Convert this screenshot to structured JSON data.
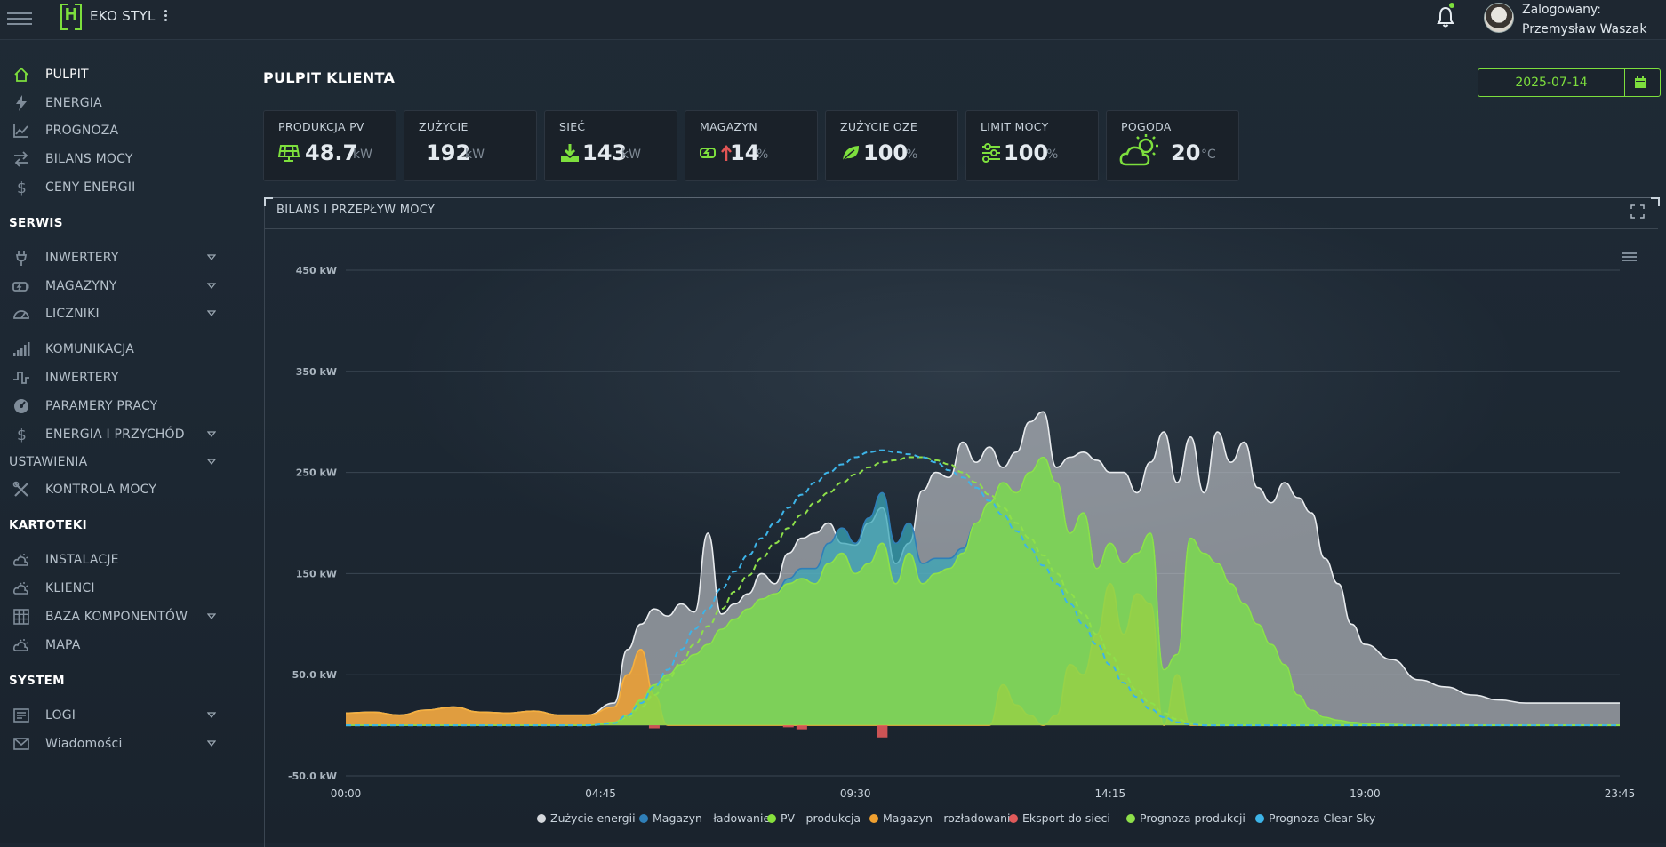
{
  "header": {
    "logo_letter": "H",
    "brand": "EKO STYL",
    "user_line1": "Zalogowany:",
    "user_line2": "Przemysław Waszak",
    "icons": [
      "menu-icon",
      "kebab-icon",
      "bell-icon",
      "avatar"
    ]
  },
  "sidebar": {
    "main_items": [
      {
        "label": "PULPIT",
        "icon": "home-icon",
        "active": true
      },
      {
        "label": "ENERGIA",
        "icon": "bolt-icon"
      },
      {
        "label": "PROGNOZA",
        "icon": "trend-icon"
      },
      {
        "label": "BILANS MOCY",
        "icon": "swap-icon"
      },
      {
        "label": "CENY ENERGII",
        "icon": "dollar-icon"
      }
    ],
    "sections": {
      "serwis": "SERWIS",
      "ustawienia": "USTAWIENIA",
      "kartoteki": "KARTOTEKI",
      "system": "SYSTEM"
    },
    "serwis_items": [
      {
        "label": "INWERTERY",
        "icon": "plug-icon",
        "dropdown": true
      },
      {
        "label": "MAGAZYNY",
        "icon": "battery-icon",
        "dropdown": true
      },
      {
        "label": "LICZNIKI",
        "icon": "gauge-icon",
        "dropdown": true
      },
      {
        "label": "KOMUNIKACJA",
        "icon": "signal-icon"
      },
      {
        "label": "INWERTERY",
        "icon": "wave-icon"
      },
      {
        "label": "PARAMERY PRACY",
        "icon": "dial-icon"
      },
      {
        "label": "ENERGIA I PRZYCHÓD",
        "icon": "dollar-icon",
        "dropdown": true
      }
    ],
    "ustawienia_items": [
      {
        "label": "KONTROLA MOCY",
        "icon": "tools-icon"
      }
    ],
    "kartoteki_items": [
      {
        "label": "INSTALACJE",
        "icon": "weather-icon"
      },
      {
        "label": "KLIENCI",
        "icon": "weather-icon"
      },
      {
        "label": "BAZA KOMPONENTÓW",
        "icon": "grid-icon",
        "dropdown": true
      },
      {
        "label": "MAPA",
        "icon": "weather-icon"
      }
    ],
    "system_items": [
      {
        "label": "LOGI",
        "icon": "log-icon",
        "dropdown": true
      },
      {
        "label": "Wiadomości",
        "icon": "mail-icon",
        "dropdown": true
      }
    ]
  },
  "main": {
    "title": "PULPIT KLIENTA",
    "date": "2025-07-14",
    "cards": [
      {
        "title": "PRODUKCJA PV",
        "value": "48.7",
        "unit": "kW",
        "icon": "solar-panel-icon"
      },
      {
        "title": "ZUŻYCIE",
        "value": "192",
        "unit": "kW",
        "icon": ""
      },
      {
        "title": "SIEĆ",
        "value": "143",
        "unit": "kW",
        "icon": "download-icon"
      },
      {
        "title": "MAGAZYN",
        "value": "14",
        "unit": "%",
        "icon": "battery-charge-icon"
      },
      {
        "title": "ZUŻYCIE OZE",
        "value": "100",
        "unit": "%",
        "icon": "leaf-icon"
      },
      {
        "title": "LIMIT MOCY",
        "value": "100",
        "unit": "%",
        "icon": "sliders-icon"
      },
      {
        "title": "POGODA",
        "value": "20",
        "unit": "°C",
        "icon": "partly-sunny-icon"
      }
    ],
    "panel_title": "BILANS I PRZEPŁYW MOCY"
  },
  "colors": {
    "accent": "#7ddf3d",
    "consumption": "#d5d8dc",
    "storage_charge": "#2f7fb8",
    "pv": "#86e03c",
    "storage_discharge": "#f0a030",
    "export": "#e05a5a",
    "forecast": "#8ee04a",
    "clear_sky": "#3db4e8"
  },
  "chart_data": {
    "type": "area",
    "y_ticks": [
      "450 kW",
      "350 kW",
      "250 kW",
      "150 kW",
      "50.0 kW",
      "-50.0 kW"
    ],
    "x_ticks": [
      "00:00",
      "04:45",
      "09:30",
      "14:15",
      "19:00",
      "23:45"
    ],
    "ylim": [
      -50,
      450
    ],
    "x_hours": [
      0,
      0.5,
      1,
      1.5,
      2,
      2.5,
      3,
      3.5,
      4,
      4.5,
      5,
      5.25,
      5.5,
      5.75,
      6,
      6.25,
      6.5,
      6.75,
      7,
      7.25,
      7.5,
      7.75,
      8,
      8.25,
      8.5,
      8.75,
      9,
      9.25,
      9.5,
      9.75,
      10,
      10.25,
      10.5,
      10.75,
      11,
      11.25,
      11.5,
      11.75,
      12,
      12.25,
      12.5,
      12.75,
      13,
      13.25,
      13.5,
      13.75,
      14,
      14.25,
      14.5,
      14.75,
      15,
      15.25,
      15.5,
      15.75,
      16,
      16.25,
      16.5,
      16.75,
      17,
      17.25,
      17.5,
      17.75,
      18,
      18.25,
      18.5,
      18.75,
      19,
      19.5,
      20,
      20.5,
      21,
      21.5,
      22,
      22.5,
      23,
      23.5,
      23.75
    ],
    "series": [
      {
        "name": "Zużycie energii",
        "color": "#d5d8dc",
        "values": [
          12,
          13,
          10,
          15,
          18,
          13,
          12,
          14,
          10,
          10,
          22,
          75,
          100,
          115,
          108,
          120,
          112,
          190,
          110,
          120,
          130,
          150,
          140,
          170,
          185,
          190,
          200,
          180,
          178,
          200,
          215,
          160,
          180,
          232,
          250,
          245,
          280,
          260,
          275,
          255,
          270,
          300,
          310,
          255,
          265,
          270,
          262,
          250,
          250,
          230,
          260,
          290,
          240,
          285,
          230,
          290,
          260,
          280,
          235,
          220,
          240,
          225,
          210,
          165,
          140,
          100,
          80,
          65,
          45,
          38,
          30,
          25,
          22,
          22,
          22,
          22,
          22
        ]
      },
      {
        "name": "Magazyn - ładowanie",
        "color": "#2f7fb8",
        "values": [
          0,
          0,
          0,
          0,
          0,
          0,
          0,
          0,
          0,
          0,
          0,
          0,
          0,
          0,
          0,
          0,
          0,
          0,
          0,
          0,
          0,
          0,
          0,
          5,
          10,
          15,
          20,
          25,
          30,
          45,
          50,
          40,
          30,
          20,
          15,
          10,
          5,
          0,
          0,
          0,
          0,
          0,
          0,
          0,
          0,
          0,
          0,
          0,
          0,
          0,
          0,
          0,
          0,
          0,
          0,
          0,
          0,
          0,
          0,
          0,
          0,
          0,
          0,
          0,
          0,
          0,
          0,
          0,
          0,
          0,
          0,
          0,
          0,
          0,
          0,
          0,
          0
        ]
      },
      {
        "name": "PV - produkcja",
        "color": "#86e03c",
        "values": [
          0,
          0,
          0,
          0,
          0,
          0,
          0,
          0,
          0,
          0,
          3,
          10,
          25,
          40,
          50,
          60,
          70,
          80,
          95,
          105,
          115,
          125,
          130,
          140,
          145,
          140,
          160,
          170,
          150,
          160,
          180,
          140,
          170,
          140,
          150,
          155,
          170,
          200,
          220,
          240,
          230,
          250,
          265,
          240,
          190,
          210,
          155,
          180,
          160,
          170,
          190,
          55,
          70,
          185,
          170,
          160,
          140,
          120,
          100,
          80,
          60,
          30,
          15,
          8,
          5,
          3,
          2,
          1,
          0,
          0,
          0,
          0,
          0,
          0,
          0,
          0,
          0
        ]
      },
      {
        "name": "Magazyn - rozładowanie",
        "color": "#f0a030",
        "values": [
          12,
          13,
          10,
          15,
          18,
          13,
          12,
          14,
          10,
          10,
          18,
          50,
          75,
          30,
          0,
          0,
          0,
          0,
          0,
          0,
          0,
          0,
          0,
          0,
          0,
          0,
          0,
          0,
          0,
          0,
          0,
          0,
          0,
          0,
          0,
          0,
          0,
          0,
          0,
          40,
          20,
          10,
          0,
          10,
          60,
          50,
          90,
          140,
          90,
          130,
          120,
          0,
          50,
          0,
          0,
          0,
          0,
          0,
          0,
          0,
          0,
          0,
          0,
          0,
          0,
          0,
          0,
          0,
          0,
          0,
          0,
          0,
          0,
          0,
          0,
          0,
          0
        ]
      },
      {
        "name": "Eksport do sieci",
        "color": "#e05a5a",
        "values": [
          0,
          0,
          0,
          0,
          0,
          0,
          0,
          0,
          0,
          0,
          0,
          0,
          0,
          -3,
          0,
          0,
          0,
          0,
          0,
          0,
          0,
          0,
          0,
          -2,
          -4,
          0,
          0,
          0,
          0,
          0,
          -12,
          0,
          0,
          0,
          0,
          0,
          0,
          0,
          0,
          0,
          0,
          0,
          0,
          0,
          0,
          0,
          0,
          0,
          0,
          0,
          0,
          0,
          0,
          0,
          0,
          0,
          0,
          0,
          0,
          0,
          0,
          0,
          0,
          0,
          0,
          0,
          0,
          0,
          0,
          0,
          0,
          0,
          0,
          0,
          0,
          0,
          0
        ]
      },
      {
        "name": "Prognoza produkcji",
        "color": "#8ee04a",
        "values": [
          0,
          0,
          0,
          0,
          0,
          0,
          0,
          0,
          0,
          0,
          2,
          8,
          18,
          30,
          45,
          62,
          80,
          98,
          115,
          132,
          148,
          165,
          180,
          195,
          208,
          220,
          230,
          240,
          248,
          255,
          260,
          262,
          265,
          265,
          262,
          258,
          250,
          240,
          228,
          215,
          200,
          185,
          168,
          150,
          130,
          110,
          90,
          70,
          50,
          35,
          22,
          12,
          6,
          2,
          0,
          0,
          0,
          0,
          0,
          0,
          0,
          0,
          0,
          0,
          0,
          0,
          0,
          0,
          0,
          0,
          0,
          0,
          0,
          0,
          0,
          0,
          0
        ]
      },
      {
        "name": "Prognoza Clear Sky",
        "color": "#3db4e8",
        "values": [
          0,
          0,
          0,
          0,
          0,
          0,
          0,
          0,
          0,
          0,
          2,
          10,
          22,
          38,
          55,
          75,
          95,
          115,
          135,
          152,
          168,
          185,
          200,
          215,
          228,
          240,
          250,
          258,
          265,
          270,
          272,
          270,
          268,
          265,
          260,
          252,
          245,
          235,
          222,
          208,
          192,
          175,
          158,
          140,
          120,
          100,
          80,
          60,
          42,
          28,
          16,
          8,
          3,
          1,
          0,
          0,
          0,
          0,
          0,
          0,
          0,
          0,
          0,
          0,
          0,
          0,
          0,
          0,
          0,
          0,
          0,
          0,
          0,
          0,
          0,
          0,
          0
        ]
      }
    ],
    "legend_position": "bottom-center",
    "grid": true
  }
}
